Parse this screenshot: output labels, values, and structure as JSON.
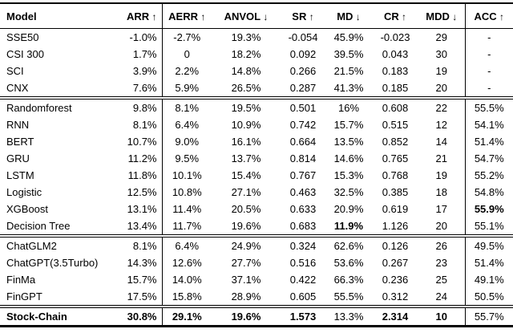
{
  "table": {
    "columns": [
      {
        "key": "model",
        "label": "Model",
        "arrow": ""
      },
      {
        "key": "arr",
        "label": "ARR",
        "arrow": "↑"
      },
      {
        "key": "aerr",
        "label": "AERR",
        "arrow": "↑"
      },
      {
        "key": "anvol",
        "label": "ANVOL",
        "arrow": "↓"
      },
      {
        "key": "sr",
        "label": "SR",
        "arrow": "↑"
      },
      {
        "key": "md",
        "label": "MD",
        "arrow": "↓"
      },
      {
        "key": "cr",
        "label": "CR",
        "arrow": "↑"
      },
      {
        "key": "mdd",
        "label": "MDD",
        "arrow": "↓"
      },
      {
        "key": "acc",
        "label": "ACC",
        "arrow": "↑"
      }
    ],
    "sections": [
      {
        "name": "index-benchmarks",
        "rows": [
          {
            "model": "SSE50",
            "values": [
              "-1.0%",
              "-2.7%",
              "19.3%",
              "-0.054",
              "45.9%",
              "-0.023",
              "29",
              "-"
            ],
            "bold": []
          },
          {
            "model": "CSI 300",
            "values": [
              "1.7%",
              "0",
              "18.2%",
              "0.092",
              "39.5%",
              "0.043",
              "30",
              "-"
            ],
            "bold": []
          },
          {
            "model": "SCI",
            "values": [
              "3.9%",
              "2.2%",
              "14.8%",
              "0.266",
              "21.5%",
              "0.183",
              "19",
              "-"
            ],
            "bold": []
          },
          {
            "model": "CNX",
            "values": [
              "7.6%",
              "5.9%",
              "26.5%",
              "0.287",
              "41.3%",
              "0.185",
              "20",
              "-"
            ],
            "bold": []
          }
        ]
      },
      {
        "name": "ml-models",
        "rows": [
          {
            "model": "Randomforest",
            "values": [
              "9.8%",
              "8.1%",
              "19.5%",
              "0.501",
              "16%",
              "0.608",
              "22",
              "55.5%"
            ],
            "bold": []
          },
          {
            "model": "RNN",
            "values": [
              "8.1%",
              "6.4%",
              "10.9%",
              "0.742",
              "15.7%",
              "0.515",
              "12",
              "54.1%"
            ],
            "bold": []
          },
          {
            "model": "BERT",
            "values": [
              "10.7%",
              "9.0%",
              "16.1%",
              "0.664",
              "13.5%",
              "0.852",
              "14",
              "51.4%"
            ],
            "bold": []
          },
          {
            "model": "GRU",
            "values": [
              "11.2%",
              "9.5%",
              "13.7%",
              "0.814",
              "14.6%",
              "0.765",
              "21",
              "54.7%"
            ],
            "bold": []
          },
          {
            "model": "LSTM",
            "values": [
              "11.8%",
              "10.1%",
              "15.4%",
              "0.767",
              "15.3%",
              "0.768",
              "19",
              "55.2%"
            ],
            "bold": []
          },
          {
            "model": "Logistic",
            "values": [
              "12.5%",
              "10.8%",
              "27.1%",
              "0.463",
              "32.5%",
              "0.385",
              "18",
              "54.8%"
            ],
            "bold": []
          },
          {
            "model": "XGBoost",
            "values": [
              "13.1%",
              "11.4%",
              "20.5%",
              "0.633",
              "20.9%",
              "0.619",
              "17",
              "55.9%"
            ],
            "bold": [
              7
            ]
          },
          {
            "model": "Decision Tree",
            "values": [
              "13.4%",
              "11.7%",
              "19.6%",
              "0.683",
              "11.9%",
              "1.126",
              "20",
              "55.1%"
            ],
            "bold": [
              4
            ]
          }
        ]
      },
      {
        "name": "llm-models",
        "rows": [
          {
            "model": "ChatGLM2",
            "values": [
              "8.1%",
              "6.4%",
              "24.9%",
              "0.324",
              "62.6%",
              "0.126",
              "26",
              "49.5%"
            ],
            "bold": []
          },
          {
            "model": "ChatGPT(3.5Turbo)",
            "values": [
              "14.3%",
              "12.6%",
              "27.7%",
              "0.516",
              "53.6%",
              "0.267",
              "23",
              "51.4%"
            ],
            "bold": []
          },
          {
            "model": "FinMa",
            "values": [
              "15.7%",
              "14.0%",
              "37.1%",
              "0.422",
              "66.3%",
              "0.236",
              "25",
              "49.1%"
            ],
            "bold": []
          },
          {
            "model": "FinGPT",
            "values": [
              "17.5%",
              "15.8%",
              "28.9%",
              "0.605",
              "55.5%",
              "0.312",
              "24",
              "50.5%"
            ],
            "bold": []
          }
        ]
      },
      {
        "name": "ours",
        "rows": [
          {
            "model": "Stock-Chain",
            "model_bold": true,
            "values": [
              "30.8%",
              "29.1%",
              "19.6%",
              "1.573",
              "13.3%",
              "2.314",
              "10",
              "55.7%"
            ],
            "bold": [
              0,
              1,
              2,
              3,
              5,
              6
            ]
          }
        ]
      }
    ]
  }
}
